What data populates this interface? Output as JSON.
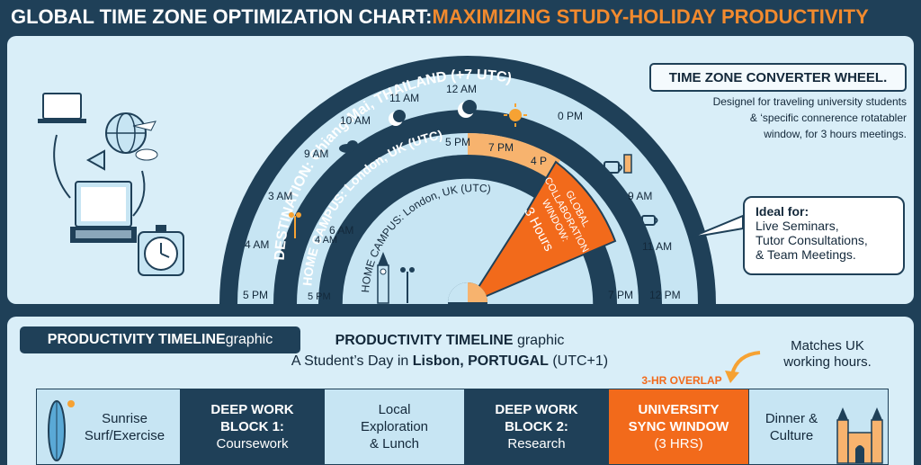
{
  "title": {
    "main": "GLOBAL TIME ZONE OPTIMIZATION CHART: ",
    "accent": "MAXIMIZING STUDY-HOLIDAY PRODUCTIVITY"
  },
  "wheel": {
    "destination_label": "DESTINATION: Chiang Mai, THAILAND (+7 UTC)",
    "home_label_outer": "HOME CAMPUS: London, UK (UTC)",
    "home_label_inner": "HOME CAMPUS: London, UK (UTC)",
    "window_label_line1": "GLOBAL",
    "window_label_line2": "COLLABORATION",
    "window_label_line3": "WINDOW:",
    "window_label_line4": "3 Hours",
    "outer_ticks": [
      "5 PM",
      "4 AM",
      "3 AM",
      "9 AM",
      "10 AM",
      "11 AM",
      "12 AM",
      "0 PM"
    ],
    "mid_ticks": [
      "5 PM",
      "4 AM",
      "6 AM",
      "5 PM",
      "7 PM",
      "4 P"
    ],
    "right_ticks": [
      "9 AM",
      "11 AM",
      "7 PM",
      "12 PM"
    ]
  },
  "converter": {
    "title": "TIME ZONE CONVERTER WHEEL.",
    "desc_line1": "Designel for traveling university students",
    "desc_line2": "& ‘specific connerence rotatabler",
    "desc_line3": "window,  for 3 hours meetings."
  },
  "ideal": {
    "title": "Ideal for:",
    "line1": "Live Seminars,",
    "line2": "Tutor Consultations,",
    "line3": "& Team Meetings."
  },
  "timeline": {
    "badge_bold": "PRODUCTIVITY TIMELINE",
    "badge_rest": " graphic",
    "title_bold": "PRODUCTIVITY TIMELINE",
    "title_rest": " graphic",
    "subtitle_pre": "A Student’s Day in ",
    "subtitle_bold": "Lisbon, PORTUGAL",
    "subtitle_post": " (UTC+1)",
    "matches_line1": "Matches UK",
    "matches_line2": "working hours.",
    "overlap_label": "3-HR OVERLAP",
    "blocks": [
      {
        "line1": "Sunrise",
        "line2": "Surf/Exercise",
        "style": "light"
      },
      {
        "line1": "DEEP WORK",
        "line2": "BLOCK 1:",
        "line3": "Coursework",
        "style": "dark"
      },
      {
        "line1": "Local",
        "line2": "Exploration",
        "line3": "& Lunch",
        "style": "light"
      },
      {
        "line1": "DEEP WORK",
        "line2": "BLOCK 2:",
        "line3": "Research",
        "style": "dark"
      },
      {
        "line1": "UNIVERSITY",
        "line2": "SYNC WINDOW",
        "line3": "(3 HRS)",
        "style": "orange"
      },
      {
        "line1": "Dinner &",
        "line2": "Culture",
        "style": "light"
      }
    ]
  },
  "colors": {
    "navy": "#1f4058",
    "orange": "#f26a1b",
    "light_orange": "#f7b36e",
    "light_blue": "#c7e5f3",
    "panel_bg": "#d9eef8"
  }
}
